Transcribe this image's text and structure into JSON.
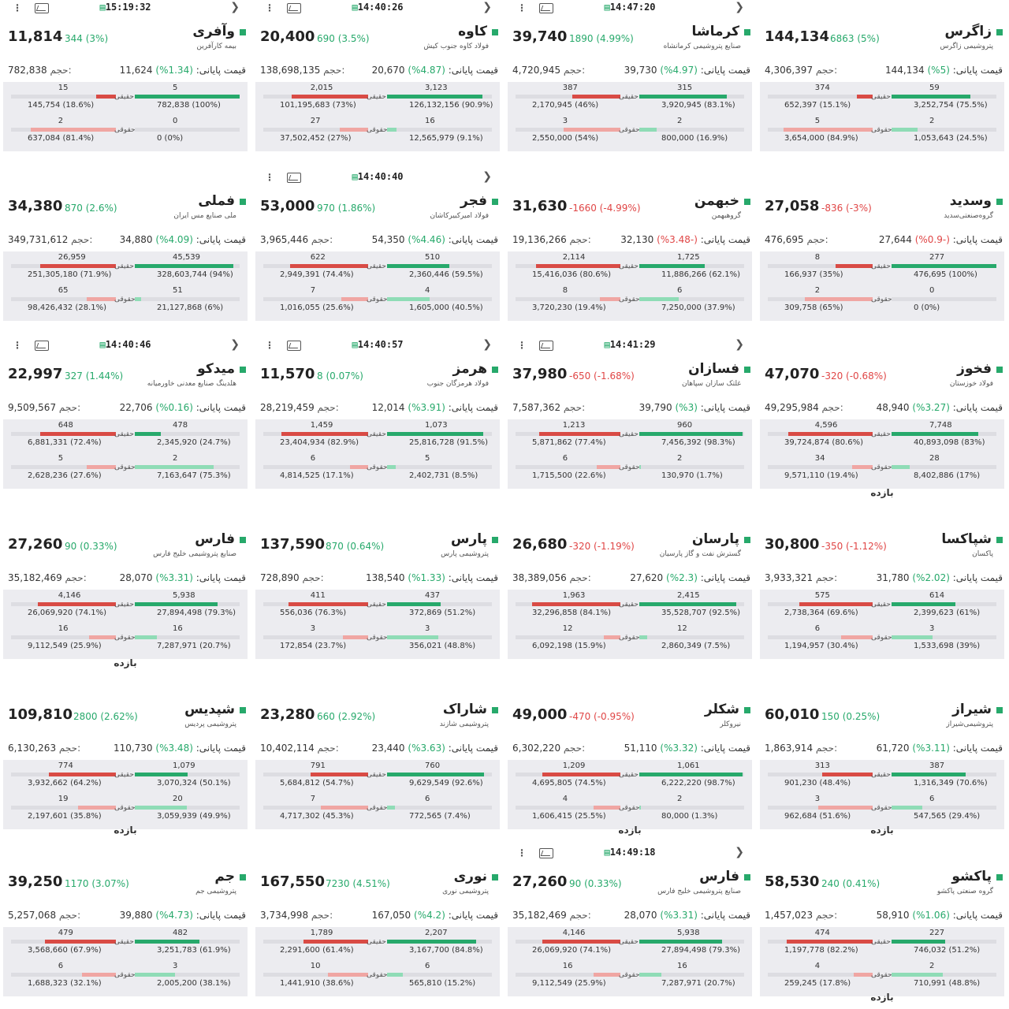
{
  "labels": {
    "volume": "حجم:",
    "close_price": "قیمت پایانی:",
    "real": "حقیقی",
    "legal": "حقوقی",
    "footer": "بازده"
  },
  "colors": {
    "up": "#27a96b",
    "down": "#e04646",
    "buy": "#27a96b",
    "sell": "#d94b45"
  },
  "cards": [
    {
      "symbol": "وآفری",
      "company": "بیمه کارآفرین",
      "price": "11,814",
      "change": "344 (3%)",
      "dir": "up",
      "volume": "782,838",
      "close": "11,624",
      "close_pct": "(1.34%)",
      "close_dir": "up",
      "time": "15:19:32",
      "show_top": true,
      "buy_real": {
        "count": "5",
        "vol": "782,838 (100%)",
        "pct": 100
      },
      "sell_real": {
        "count": "15",
        "vol": "145,754 (18.6%)",
        "pct": 18.6
      },
      "buy_legal": {
        "count": "0",
        "vol": "0 (0%)",
        "pct": 0
      },
      "sell_legal": {
        "count": "2",
        "vol": "637,084 (81.4%)",
        "pct": 81.4
      },
      "show_footer": false
    },
    {
      "symbol": "کاوه",
      "company": "فولاد کاوه جنوب کیش",
      "price": "20,400",
      "change": "690 (3.5%)",
      "dir": "up",
      "volume": "138,698,135",
      "close": "20,670",
      "close_pct": "(4.87%)",
      "close_dir": "up",
      "time": "14:40:26",
      "show_top": true,
      "buy_real": {
        "count": "3,123",
        "vol": "126,132,156 (90.9%)",
        "pct": 90.9
      },
      "sell_real": {
        "count": "2,015",
        "vol": "101,195,683 (73%)",
        "pct": 73
      },
      "buy_legal": {
        "count": "16",
        "vol": "12,565,979 (9.1%)",
        "pct": 9.1
      },
      "sell_legal": {
        "count": "27",
        "vol": "37,502,452 (27%)",
        "pct": 27
      },
      "show_footer": false
    },
    {
      "symbol": "کرماشا",
      "company": "صنایع پتروشیمی کرمانشاه",
      "price": "39,740",
      "change": "1890 (4.99%)",
      "dir": "up",
      "volume": "4,720,945",
      "close": "39,730",
      "close_pct": "(4.97%)",
      "close_dir": "up",
      "time": "14:47:20",
      "show_top": true,
      "buy_real": {
        "count": "315",
        "vol": "3,920,945 (83.1%)",
        "pct": 83.1
      },
      "sell_real": {
        "count": "387",
        "vol": "2,170,945 (46%)",
        "pct": 46
      },
      "buy_legal": {
        "count": "2",
        "vol": "800,000 (16.9%)",
        "pct": 16.9
      },
      "sell_legal": {
        "count": "3",
        "vol": "2,550,000 (54%)",
        "pct": 54
      },
      "show_footer": false
    },
    {
      "symbol": "زاگرس",
      "company": "پتروشیمی زاگرس",
      "price": "144,134",
      "change": "6863 (5%)",
      "dir": "up",
      "volume": "4,306,397",
      "close": "144,134",
      "close_pct": "(5%)",
      "close_dir": "up",
      "time": "",
      "show_top": false,
      "buy_real": {
        "count": "59",
        "vol": "3,252,754 (75.5%)",
        "pct": 75.5
      },
      "sell_real": {
        "count": "374",
        "vol": "652,397 (15.1%)",
        "pct": 15.1
      },
      "buy_legal": {
        "count": "2",
        "vol": "1,053,643 (24.5%)",
        "pct": 24.5
      },
      "sell_legal": {
        "count": "5",
        "vol": "3,654,000 (84.9%)",
        "pct": 84.9
      },
      "show_footer": false
    },
    {
      "symbol": "فملی",
      "company": "ملی صنایع مس ایران",
      "price": "34,380",
      "change": "870 (2.6%)",
      "dir": "up",
      "volume": "349,731,612",
      "close": "34,880",
      "close_pct": "(4.09%)",
      "close_dir": "up",
      "time": "",
      "show_top": false,
      "buy_real": {
        "count": "45,539",
        "vol": "328,603,744 (94%)",
        "pct": 94
      },
      "sell_real": {
        "count": "26,959",
        "vol": "251,305,180 (71.9%)",
        "pct": 71.9
      },
      "buy_legal": {
        "count": "51",
        "vol": "21,127,868 (6%)",
        "pct": 6
      },
      "sell_legal": {
        "count": "65",
        "vol": "98,426,432 (28.1%)",
        "pct": 28.1
      },
      "show_footer": false
    },
    {
      "symbol": "فجر",
      "company": "فولاد امیرکبیرکاشان",
      "price": "53,000",
      "change": "970 (1.86%)",
      "dir": "up",
      "volume": "3,965,446",
      "close": "54,350",
      "close_pct": "(4.46%)",
      "close_dir": "up",
      "time": "14:40:40",
      "show_top": true,
      "buy_real": {
        "count": "510",
        "vol": "2,360,446 (59.5%)",
        "pct": 59.5
      },
      "sell_real": {
        "count": "622",
        "vol": "2,949,391 (74.4%)",
        "pct": 74.4
      },
      "buy_legal": {
        "count": "4",
        "vol": "1,605,000 (40.5%)",
        "pct": 40.5
      },
      "sell_legal": {
        "count": "7",
        "vol": "1,016,055 (25.6%)",
        "pct": 25.6
      },
      "show_footer": false
    },
    {
      "symbol": "خبهمن",
      "company": "گروهبهمن",
      "price": "31,630",
      "change": "-1660 (-4.99%)",
      "dir": "down",
      "volume": "19,136,266",
      "close": "32,130",
      "close_pct": "(-3.48%)",
      "close_dir": "down",
      "time": "",
      "show_top": false,
      "buy_real": {
        "count": "1,725",
        "vol": "11,886,266 (62.1%)",
        "pct": 62.1
      },
      "sell_real": {
        "count": "2,114",
        "vol": "15,416,036 (80.6%)",
        "pct": 80.6
      },
      "buy_legal": {
        "count": "6",
        "vol": "7,250,000 (37.9%)",
        "pct": 37.9
      },
      "sell_legal": {
        "count": "8",
        "vol": "3,720,230 (19.4%)",
        "pct": 19.4
      },
      "show_footer": false
    },
    {
      "symbol": "وسدید",
      "company": "گروه‌صنعتی‌سدید",
      "price": "27,058",
      "change": "-836 (-3%)",
      "dir": "down",
      "volume": "476,695",
      "close": "27,644",
      "close_pct": "(-0.9%)",
      "close_dir": "down",
      "time": "",
      "show_top": false,
      "buy_real": {
        "count": "277",
        "vol": "476,695 (100%)",
        "pct": 100
      },
      "sell_real": {
        "count": "8",
        "vol": "166,937 (35%)",
        "pct": 35
      },
      "buy_legal": {
        "count": "0",
        "vol": "0 (0%)",
        "pct": 0
      },
      "sell_legal": {
        "count": "2",
        "vol": "309,758 (65%)",
        "pct": 65
      },
      "show_footer": false
    },
    {
      "symbol": "میدکو",
      "company": "هلدینگ صنایع معدنی خاورمیانه",
      "price": "22,997",
      "change": "327 (1.44%)",
      "dir": "up",
      "volume": "9,509,567",
      "close": "22,706",
      "close_pct": "(0.16%)",
      "close_dir": "up",
      "time": "14:40:46",
      "show_top": true,
      "buy_real": {
        "count": "478",
        "vol": "2,345,920 (24.7%)",
        "pct": 24.7
      },
      "sell_real": {
        "count": "648",
        "vol": "6,881,331 (72.4%)",
        "pct": 72.4
      },
      "buy_legal": {
        "count": "2",
        "vol": "7,163,647 (75.3%)",
        "pct": 75.3
      },
      "sell_legal": {
        "count": "5",
        "vol": "2,628,236 (27.6%)",
        "pct": 27.6
      },
      "show_footer": false
    },
    {
      "symbol": "هرمز",
      "company": "فولاد هرمزگان جنوب",
      "price": "11,570",
      "change": "8 (0.07%)",
      "dir": "up",
      "volume": "28,219,459",
      "close": "12,014",
      "close_pct": "(3.91%)",
      "close_dir": "up",
      "time": "14:40:57",
      "show_top": true,
      "buy_real": {
        "count": "1,073",
        "vol": "25,816,728 (91.5%)",
        "pct": 91.5
      },
      "sell_real": {
        "count": "1,459",
        "vol": "23,404,934 (82.9%)",
        "pct": 82.9
      },
      "buy_legal": {
        "count": "5",
        "vol": "2,402,731 (8.5%)",
        "pct": 8.5
      },
      "sell_legal": {
        "count": "6",
        "vol": "4,814,525 (17.1%)",
        "pct": 17.1
      },
      "show_footer": false
    },
    {
      "symbol": "فسازان",
      "company": "غلتک سازان سپاهان",
      "price": "37,980",
      "change": "-650 (-1.68%)",
      "dir": "down",
      "volume": "7,587,362",
      "close": "39,790",
      "close_pct": "(3%)",
      "close_dir": "up",
      "time": "14:41:29",
      "show_top": true,
      "buy_real": {
        "count": "960",
        "vol": "7,456,392 (98.3%)",
        "pct": 98.3
      },
      "sell_real": {
        "count": "1,213",
        "vol": "5,871,862 (77.4%)",
        "pct": 77.4
      },
      "buy_legal": {
        "count": "2",
        "vol": "130,970 (1.7%)",
        "pct": 1.7
      },
      "sell_legal": {
        "count": "6",
        "vol": "1,715,500 (22.6%)",
        "pct": 22.6
      },
      "show_footer": false
    },
    {
      "symbol": "فخوز",
      "company": "فولاد خوزستان",
      "price": "47,070",
      "change": "-320 (-0.68%)",
      "dir": "down",
      "volume": "49,295,984",
      "close": "48,940",
      "close_pct": "(3.27%)",
      "close_dir": "up",
      "time": "",
      "show_top": false,
      "buy_real": {
        "count": "7,748",
        "vol": "40,893,098 (83%)",
        "pct": 83
      },
      "sell_real": {
        "count": "4,596",
        "vol": "39,724,874 (80.6%)",
        "pct": 80.6
      },
      "buy_legal": {
        "count": "28",
        "vol": "8,402,886 (17%)",
        "pct": 17
      },
      "sell_legal": {
        "count": "34",
        "vol": "9,571,110 (19.4%)",
        "pct": 19.4
      },
      "show_footer": true
    },
    {
      "symbol": "فارس",
      "company": "صنایع پتروشیمی خلیج فارس",
      "price": "27,260",
      "change": "90 (0.33%)",
      "dir": "up",
      "volume": "35,182,469",
      "close": "28,070",
      "close_pct": "(3.31%)",
      "close_dir": "up",
      "time": "",
      "show_top": false,
      "buy_real": {
        "count": "5,938",
        "vol": "27,894,498 (79.3%)",
        "pct": 79.3
      },
      "sell_real": {
        "count": "4,146",
        "vol": "26,069,920 (74.1%)",
        "pct": 74.1
      },
      "buy_legal": {
        "count": "16",
        "vol": "7,287,971 (20.7%)",
        "pct": 20.7
      },
      "sell_legal": {
        "count": "16",
        "vol": "9,112,549 (25.9%)",
        "pct": 25.9
      },
      "show_footer": true
    },
    {
      "symbol": "پارس",
      "company": "پتروشیمی پارس",
      "price": "137,590",
      "change": "870 (0.64%)",
      "dir": "up",
      "volume": "728,890",
      "close": "138,540",
      "close_pct": "(1.33%)",
      "close_dir": "up",
      "time": "",
      "show_top": false,
      "buy_real": {
        "count": "437",
        "vol": "372,869 (51.2%)",
        "pct": 51.2
      },
      "sell_real": {
        "count": "411",
        "vol": "556,036 (76.3%)",
        "pct": 76.3
      },
      "buy_legal": {
        "count": "3",
        "vol": "356,021 (48.8%)",
        "pct": 48.8
      },
      "sell_legal": {
        "count": "3",
        "vol": "172,854 (23.7%)",
        "pct": 23.7
      },
      "show_footer": false
    },
    {
      "symbol": "پارسان",
      "company": "گسترش نفت و گاز پارسیان",
      "price": "26,680",
      "change": "-320 (-1.19%)",
      "dir": "down",
      "volume": "38,389,056",
      "close": "27,620",
      "close_pct": "(2.3%)",
      "close_dir": "up",
      "time": "",
      "show_top": false,
      "buy_real": {
        "count": "2,415",
        "vol": "35,528,707 (92.5%)",
        "pct": 92.5
      },
      "sell_real": {
        "count": "1,963",
        "vol": "32,296,858 (84.1%)",
        "pct": 84.1
      },
      "buy_legal": {
        "count": "12",
        "vol": "2,860,349 (7.5%)",
        "pct": 7.5
      },
      "sell_legal": {
        "count": "12",
        "vol": "6,092,198 (15.9%)",
        "pct": 15.9
      },
      "show_footer": false
    },
    {
      "symbol": "شپاکسا",
      "company": "پاکسان",
      "price": "30,800",
      "change": "-350 (-1.12%)",
      "dir": "down",
      "volume": "3,933,321",
      "close": "31,780",
      "close_pct": "(2.02%)",
      "close_dir": "up",
      "time": "",
      "show_top": false,
      "buy_real": {
        "count": "614",
        "vol": "2,399,623 (61%)",
        "pct": 61
      },
      "sell_real": {
        "count": "575",
        "vol": "2,738,364 (69.6%)",
        "pct": 69.6
      },
      "buy_legal": {
        "count": "3",
        "vol": "1,533,698 (39%)",
        "pct": 39
      },
      "sell_legal": {
        "count": "6",
        "vol": "1,194,957 (30.4%)",
        "pct": 30.4
      },
      "show_footer": false
    },
    {
      "symbol": "شپدیس",
      "company": "پتروشیمی پردیس",
      "price": "109,810",
      "change": "2800 (2.62%)",
      "dir": "up",
      "volume": "6,130,263",
      "close": "110,730",
      "close_pct": "(3.48%)",
      "close_dir": "up",
      "time": "",
      "show_top": false,
      "buy_real": {
        "count": "1,079",
        "vol": "3,070,324 (50.1%)",
        "pct": 50.1
      },
      "sell_real": {
        "count": "774",
        "vol": "3,932,662 (64.2%)",
        "pct": 64.2
      },
      "buy_legal": {
        "count": "20",
        "vol": "3,059,939 (49.9%)",
        "pct": 49.9
      },
      "sell_legal": {
        "count": "19",
        "vol": "2,197,601 (35.8%)",
        "pct": 35.8
      },
      "show_footer": true
    },
    {
      "symbol": "شاراک",
      "company": "پتروشیمی شازند",
      "price": "23,280",
      "change": "660 (2.92%)",
      "dir": "up",
      "volume": "10,402,114",
      "close": "23,440",
      "close_pct": "(3.63%)",
      "close_dir": "up",
      "time": "",
      "show_top": false,
      "buy_real": {
        "count": "760",
        "vol": "9,629,549 (92.6%)",
        "pct": 92.6
      },
      "sell_real": {
        "count": "791",
        "vol": "5,684,812 (54.7%)",
        "pct": 54.7
      },
      "buy_legal": {
        "count": "6",
        "vol": "772,565 (7.4%)",
        "pct": 7.4
      },
      "sell_legal": {
        "count": "7",
        "vol": "4,717,302 (45.3%)",
        "pct": 45.3
      },
      "show_footer": false
    },
    {
      "symbol": "شکلر",
      "company": "نیروکلر",
      "price": "49,000",
      "change": "-470 (-0.95%)",
      "dir": "down",
      "volume": "6,302,220",
      "close": "51,110",
      "close_pct": "(3.32%)",
      "close_dir": "up",
      "time": "",
      "show_top": false,
      "buy_real": {
        "count": "1,061",
        "vol": "6,222,220 (98.7%)",
        "pct": 98.7
      },
      "sell_real": {
        "count": "1,209",
        "vol": "4,695,805 (74.5%)",
        "pct": 74.5
      },
      "buy_legal": {
        "count": "2",
        "vol": "80,000 (1.3%)",
        "pct": 1.3
      },
      "sell_legal": {
        "count": "4",
        "vol": "1,606,415 (25.5%)",
        "pct": 25.5
      },
      "show_footer": true
    },
    {
      "symbol": "شیراز",
      "company": "پتروشیمی‌شیراز",
      "price": "60,010",
      "change": "150 (0.25%)",
      "dir": "up",
      "volume": "1,863,914",
      "close": "61,720",
      "close_pct": "(3.11%)",
      "close_dir": "up",
      "time": "",
      "show_top": false,
      "buy_real": {
        "count": "387",
        "vol": "1,316,349 (70.6%)",
        "pct": 70.6
      },
      "sell_real": {
        "count": "313",
        "vol": "901,230 (48.4%)",
        "pct": 48.4
      },
      "buy_legal": {
        "count": "6",
        "vol": "547,565 (29.4%)",
        "pct": 29.4
      },
      "sell_legal": {
        "count": "3",
        "vol": "962,684 (51.6%)",
        "pct": 51.6
      },
      "show_footer": true
    },
    {
      "symbol": "جم",
      "company": "پتروشیمی جم",
      "price": "39,250",
      "change": "1170 (3.07%)",
      "dir": "up",
      "volume": "5,257,068",
      "close": "39,880",
      "close_pct": "(4.73%)",
      "close_dir": "up",
      "time": "",
      "show_top": false,
      "buy_real": {
        "count": "482",
        "vol": "3,251,783 (61.9%)",
        "pct": 61.9
      },
      "sell_real": {
        "count": "479",
        "vol": "3,568,660 (67.9%)",
        "pct": 67.9
      },
      "buy_legal": {
        "count": "3",
        "vol": "2,005,200 (38.1%)",
        "pct": 38.1
      },
      "sell_legal": {
        "count": "6",
        "vol": "1,688,323 (32.1%)",
        "pct": 32.1
      },
      "show_footer": false
    },
    {
      "symbol": "نوری",
      "company": "پتروشیمی نوری",
      "price": "167,550",
      "change": "7230 (4.51%)",
      "dir": "up",
      "volume": "3,734,998",
      "close": "167,050",
      "close_pct": "(4.2%)",
      "close_dir": "up",
      "time": "",
      "show_top": false,
      "buy_real": {
        "count": "2,207",
        "vol": "3,167,700 (84.8%)",
        "pct": 84.8
      },
      "sell_real": {
        "count": "1,789",
        "vol": "2,291,600 (61.4%)",
        "pct": 61.4
      },
      "buy_legal": {
        "count": "6",
        "vol": "565,810 (15.2%)",
        "pct": 15.2
      },
      "sell_legal": {
        "count": "10",
        "vol": "1,441,910 (38.6%)",
        "pct": 38.6
      },
      "show_footer": false
    },
    {
      "symbol": "فارس",
      "company": "صنایع پتروشیمی خلیج فارس",
      "price": "27,260",
      "change": "90 (0.33%)",
      "dir": "up",
      "volume": "35,182,469",
      "close": "28,070",
      "close_pct": "(3.31%)",
      "close_dir": "up",
      "time": "14:49:18",
      "show_top": true,
      "buy_real": {
        "count": "5,938",
        "vol": "27,894,498 (79.3%)",
        "pct": 79.3
      },
      "sell_real": {
        "count": "4,146",
        "vol": "26,069,920 (74.1%)",
        "pct": 74.1
      },
      "buy_legal": {
        "count": "16",
        "vol": "7,287,971 (20.7%)",
        "pct": 20.7
      },
      "sell_legal": {
        "count": "16",
        "vol": "9,112,549 (25.9%)",
        "pct": 25.9
      },
      "show_footer": false
    },
    {
      "symbol": "پاکشو",
      "company": "گروه صنعتی پاکشو",
      "price": "58,530",
      "change": "240 (0.41%)",
      "dir": "up",
      "volume": "1,457,023",
      "close": "58,910",
      "close_pct": "(1.06%)",
      "close_dir": "up",
      "time": "",
      "show_top": false,
      "buy_real": {
        "count": "227",
        "vol": "746,032 (51.2%)",
        "pct": 51.2
      },
      "sell_real": {
        "count": "474",
        "vol": "1,197,778 (82.2%)",
        "pct": 82.2
      },
      "buy_legal": {
        "count": "2",
        "vol": "710,991 (48.8%)",
        "pct": 48.8
      },
      "sell_legal": {
        "count": "4",
        "vol": "259,245 (17.8%)",
        "pct": 17.8
      },
      "show_footer": true
    }
  ]
}
